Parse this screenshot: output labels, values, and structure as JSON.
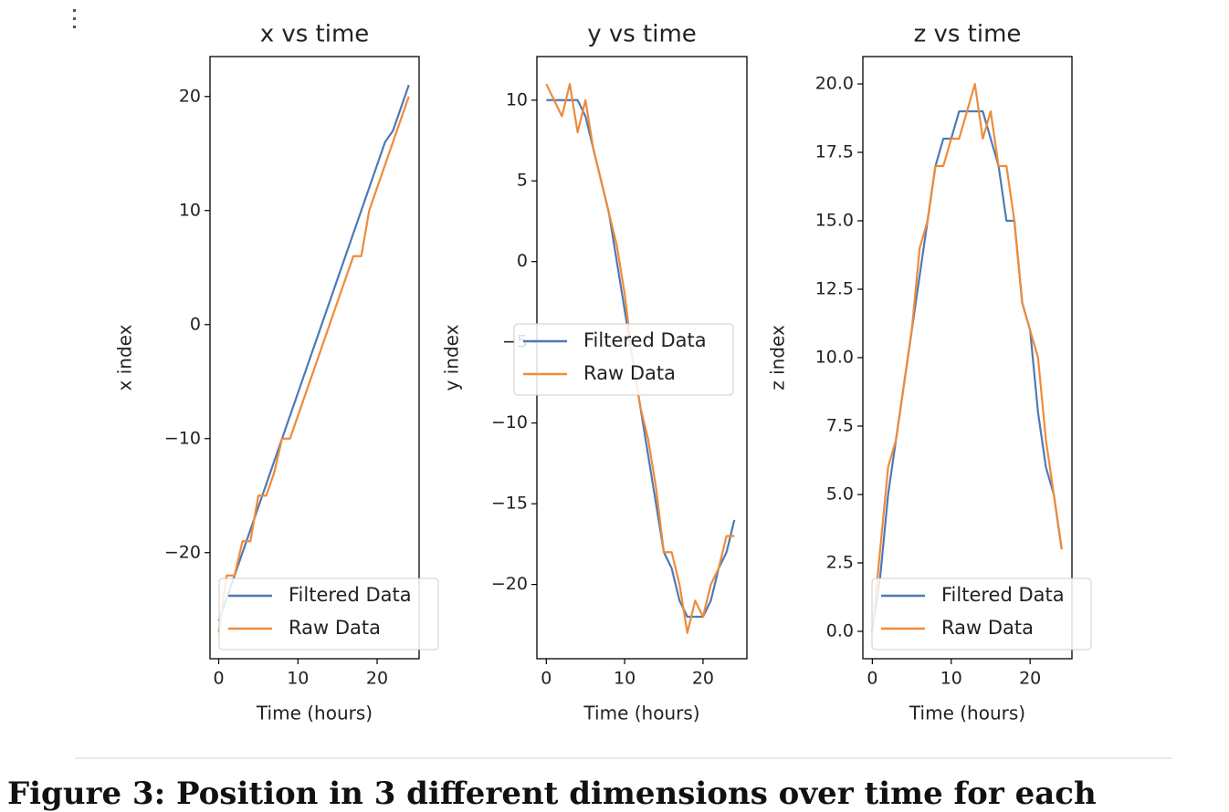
{
  "chart_data": [
    {
      "type": "line",
      "title": "x vs time",
      "x_label": "Time (hours)",
      "y_label": "x index",
      "x": [
        0,
        1,
        2,
        3,
        4,
        5,
        6,
        7,
        8,
        9,
        10,
        11,
        12,
        13,
        14,
        15,
        16,
        17,
        18,
        19,
        20,
        21,
        22,
        23,
        24
      ],
      "series": [
        {
          "name": "Filtered Data",
          "color": "#4e79b7",
          "values": [
            -26,
            -24,
            -22,
            -20,
            -18,
            -16,
            -14,
            -12,
            -10,
            -8,
            -6,
            -4,
            -2,
            0,
            2,
            4,
            6,
            8,
            10,
            12,
            14,
            16,
            17,
            19,
            21
          ]
        },
        {
          "name": "Raw Data",
          "color": "#ee8b3a",
          "values": [
            -27,
            -22,
            -22,
            -19,
            -19,
            -15,
            -15,
            -13,
            -10,
            -10,
            -8,
            -6,
            -4,
            -2,
            0,
            2,
            4,
            6,
            6,
            10,
            12,
            14,
            16,
            18,
            20
          ]
        }
      ],
      "xlim": [
        -1.1,
        25.3
      ],
      "ylim": [
        -29.3,
        23.5
      ],
      "xticks": [
        0,
        10,
        20
      ],
      "yticks": [
        {
          "value": -20,
          "label": "−20"
        },
        {
          "value": -10,
          "label": "−10"
        },
        0,
        10,
        20
      ],
      "grid": false,
      "legend": "lower left"
    },
    {
      "type": "line",
      "title": "y vs time",
      "x_label": "Time (hours)",
      "y_label": "y index",
      "x": [
        0,
        1,
        2,
        3,
        4,
        5,
        6,
        7,
        8,
        9,
        10,
        11,
        12,
        13,
        14,
        15,
        16,
        17,
        18,
        19,
        20,
        21,
        22,
        23,
        24
      ],
      "series": [
        {
          "name": "Filtered Data",
          "color": "#4e79b7",
          "values": [
            10,
            10,
            10,
            10,
            10,
            9,
            7,
            5,
            3,
            0,
            -3,
            -6,
            -9,
            -12,
            -15,
            -18,
            -19,
            -21,
            -22,
            -22,
            -22,
            -21,
            -19,
            -18,
            -16
          ]
        },
        {
          "name": "Raw Data",
          "color": "#ee8b3a",
          "values": [
            11,
            10,
            9,
            11,
            8,
            10,
            7,
            5,
            3,
            1,
            -2,
            -6,
            -9,
            -11,
            -14,
            -18,
            -18,
            -20,
            -23,
            -21,
            -22,
            -20,
            -19,
            -17,
            -17
          ]
        }
      ],
      "xlim": [
        -1.2,
        25.6
      ],
      "ylim": [
        -24.6,
        12.7
      ],
      "xticks": [
        0,
        10,
        20
      ],
      "yticks": [
        {
          "value": -20,
          "label": "−20"
        },
        {
          "value": -15,
          "label": "−15"
        },
        {
          "value": -10,
          "label": "−10"
        },
        {
          "value": -5,
          "label": "−5"
        },
        0,
        5,
        10
      ],
      "grid": false,
      "legend": "center"
    },
    {
      "type": "line",
      "title": "z vs time",
      "x_label": "Time (hours)",
      "y_label": "z index",
      "x": [
        0,
        1,
        2,
        3,
        4,
        5,
        6,
        7,
        8,
        9,
        10,
        11,
        12,
        13,
        14,
        15,
        16,
        17,
        18,
        19,
        20,
        21,
        22,
        23,
        24
      ],
      "series": [
        {
          "name": "Filtered Data",
          "color": "#4e79b7",
          "values": [
            0,
            2,
            5,
            7,
            9,
            11,
            13,
            15,
            17,
            18,
            18,
            19,
            19,
            19,
            19,
            18,
            17,
            15,
            15,
            12,
            11,
            8,
            6,
            5,
            3
          ]
        },
        {
          "name": "Raw Data",
          "color": "#ee8b3a",
          "values": [
            0,
            3,
            6,
            7,
            9,
            11,
            14,
            15,
            17,
            17,
            18,
            18,
            19,
            20,
            18,
            19,
            17,
            17,
            15,
            12,
            11,
            10,
            7,
            5,
            3
          ]
        }
      ],
      "xlim": [
        -1.2,
        25.3
      ],
      "ylim": [
        -1.0,
        21.0
      ],
      "xticks": [
        0,
        10,
        20
      ],
      "yticks": [
        {
          "value": 0,
          "label": "0.0"
        },
        {
          "value": 2.5,
          "label": "2.5"
        },
        {
          "value": 5,
          "label": "5.0"
        },
        {
          "value": 7.5,
          "label": "7.5"
        },
        {
          "value": 10,
          "label": "10.0"
        },
        {
          "value": 12.5,
          "label": "12.5"
        },
        {
          "value": 15,
          "label": "15.0"
        },
        {
          "value": 17.5,
          "label": "17.5"
        },
        {
          "value": 20,
          "label": "20.0"
        }
      ],
      "grid": false,
      "legend": "lower left"
    }
  ],
  "caption": "Figure 3: Position in 3 different dimensions over time for each"
}
